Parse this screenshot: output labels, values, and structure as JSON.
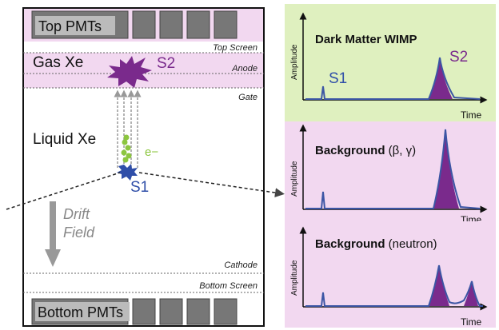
{
  "detector": {
    "top_pmts": "Top PMTs",
    "bottom_pmts": "Bottom PMTs",
    "top_screen": "Top Screen",
    "anode": "Anode",
    "gate": "Gate",
    "cathode": "Cathode",
    "bottom_screen": "Bottom Screen",
    "gas_xe": "Gas Xe",
    "liquid_xe": "Liquid Xe",
    "s1": "S1",
    "s2": "S2",
    "electron": "e−",
    "drift_line1": "Drift",
    "drift_line2": "Field"
  },
  "panels": [
    {
      "title": "Dark Matter WIMP",
      "title_suffix": "",
      "ylabel": "Amplitude",
      "xlabel": "Time",
      "s1_label": "S1",
      "s2_label": "S2",
      "bg": "#dff0bf"
    },
    {
      "title": "Background",
      "title_suffix": " (β, γ)",
      "ylabel": "Amplitude",
      "xlabel": "Time",
      "bg": "#f2d8f0"
    },
    {
      "title": "Background",
      "title_suffix": " (neutron)",
      "ylabel": "Amplitude",
      "xlabel": "Time",
      "bg": "#f2d8f0"
    }
  ],
  "colors": {
    "gas_band": "#f2d8f0",
    "pmt": "#777777",
    "s2_purple": "#7a2a8c",
    "s1_blue": "#2f4ea8",
    "electron_green": "#8cc63f",
    "trace_blue": "#3b55a4",
    "arrow_gray": "#999999"
  }
}
